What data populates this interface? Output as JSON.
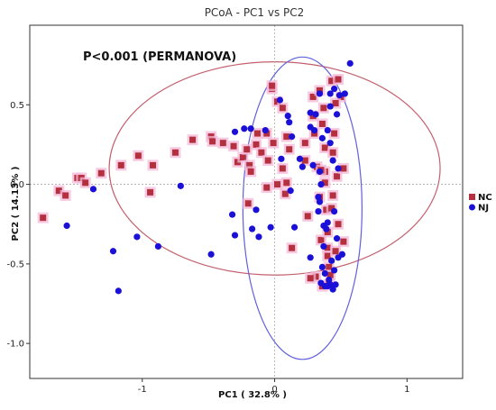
{
  "chart_data": {
    "type": "scatter",
    "title": "PCoA - PC1 vs PC2",
    "xlabel": "PC1 ( 32.8% )",
    "ylabel": "PC2 ( 14.13% )",
    "xlim": [
      -1.85,
      1.42
    ],
    "ylim": [
      -1.22,
      1.0
    ],
    "xticks": [
      -1,
      0,
      1
    ],
    "xtick_labels": [
      "-1",
      "0",
      "1"
    ],
    "yticks": [
      0.5,
      0.0,
      -0.5,
      -1.0
    ],
    "ytick_labels": [
      "0.5",
      "0.0",
      "-0.5",
      "-1.0"
    ],
    "grid": false,
    "reference_lines": [
      0,
      0
    ],
    "annotation": "P<0.001 (PERMANOVA)",
    "legend_position": "right",
    "series": [
      {
        "name": "NC",
        "marker": "square",
        "color": "#b5303f",
        "halo": "#f4b8d8",
        "points": [
          [
            -1.75,
            -0.21
          ],
          [
            -1.63,
            -0.04
          ],
          [
            -1.58,
            -0.07
          ],
          [
            -1.49,
            0.04
          ],
          [
            -1.46,
            0.04
          ],
          [
            -1.43,
            0.01
          ],
          [
            -1.31,
            0.07
          ],
          [
            -1.16,
            0.12
          ],
          [
            -1.03,
            0.18
          ],
          [
            -0.94,
            -0.05
          ],
          [
            -0.92,
            0.12
          ],
          [
            -0.75,
            0.2
          ],
          [
            -0.62,
            0.28
          ],
          [
            -0.48,
            0.3
          ],
          [
            -0.47,
            0.27
          ],
          [
            -0.39,
            0.26
          ],
          [
            -0.31,
            0.24
          ],
          [
            -0.28,
            0.14
          ],
          [
            -0.24,
            0.17
          ],
          [
            -0.21,
            0.22
          ],
          [
            -0.19,
            0.12
          ],
          [
            -0.2,
            -0.12
          ],
          [
            -0.18,
            0.08
          ],
          [
            -0.14,
            0.25
          ],
          [
            -0.13,
            0.32
          ],
          [
            -0.1,
            0.2
          ],
          [
            -0.06,
            0.32
          ],
          [
            -0.05,
            0.15
          ],
          [
            -0.06,
            -0.02
          ],
          [
            -0.02,
            0.6
          ],
          [
            -0.02,
            0.62
          ],
          [
            -0.01,
            0.26
          ],
          [
            0.02,
            0.52
          ],
          [
            0.02,
            0.0
          ],
          [
            0.06,
            0.48
          ],
          [
            0.09,
            0.3
          ],
          [
            0.11,
            0.22
          ],
          [
            0.06,
            0.1
          ],
          [
            0.09,
            0.01
          ],
          [
            0.08,
            -0.06
          ],
          [
            0.13,
            -0.4
          ],
          [
            0.23,
            0.26
          ],
          [
            0.23,
            0.15
          ],
          [
            0.29,
            0.55
          ],
          [
            0.29,
            0.43
          ],
          [
            0.3,
            0.32
          ],
          [
            0.32,
            0.11
          ],
          [
            0.25,
            -0.2
          ],
          [
            0.36,
            0.38
          ],
          [
            0.37,
            0.48
          ],
          [
            0.38,
            0.23
          ],
          [
            0.38,
            0.08
          ],
          [
            0.38,
            0.01
          ],
          [
            0.35,
            -0.35
          ],
          [
            0.39,
            -0.16
          ],
          [
            0.4,
            -0.4
          ],
          [
            0.4,
            -0.45
          ],
          [
            0.41,
            -0.52
          ],
          [
            0.42,
            -0.57
          ],
          [
            0.43,
            0.65
          ],
          [
            0.45,
            0.32
          ],
          [
            0.44,
            0.2
          ],
          [
            0.44,
            -0.07
          ],
          [
            0.46,
            -0.42
          ],
          [
            0.48,
            0.66
          ],
          [
            0.48,
            -0.25
          ],
          [
            0.5,
            0.55
          ],
          [
            0.31,
            -0.58
          ],
          [
            0.36,
            -0.64
          ],
          [
            0.41,
            -0.63
          ],
          [
            0.47,
            0.05
          ],
          [
            0.52,
            -0.36
          ],
          [
            0.52,
            0.1
          ],
          [
            0.34,
            -0.08
          ],
          [
            0.35,
            0.09
          ],
          [
            0.43,
            -0.15
          ],
          [
            0.4,
            -0.3
          ],
          [
            0.46,
            0.51
          ],
          [
            0.34,
            0.59
          ],
          [
            0.27,
            -0.59
          ]
        ]
      },
      {
        "name": "NJ",
        "marker": "circle",
        "color": "#1a10d8",
        "points": [
          [
            -1.57,
            -0.26
          ],
          [
            -1.37,
            -0.03
          ],
          [
            -1.22,
            -0.42
          ],
          [
            -1.18,
            -0.67
          ],
          [
            -1.04,
            -0.33
          ],
          [
            -0.88,
            -0.39
          ],
          [
            -0.71,
            -0.01
          ],
          [
            -0.48,
            -0.44
          ],
          [
            -0.32,
            -0.19
          ],
          [
            -0.3,
            0.33
          ],
          [
            -0.3,
            -0.32
          ],
          [
            -0.23,
            0.35
          ],
          [
            -0.18,
            0.35
          ],
          [
            -0.17,
            -0.28
          ],
          [
            -0.14,
            -0.16
          ],
          [
            -0.12,
            -0.33
          ],
          [
            -0.07,
            0.34
          ],
          [
            -0.03,
            -0.27
          ],
          [
            0.04,
            0.53
          ],
          [
            0.05,
            0.16
          ],
          [
            0.1,
            0.43
          ],
          [
            0.11,
            0.39
          ],
          [
            0.12,
            -0.04
          ],
          [
            0.13,
            0.3
          ],
          [
            0.15,
            -0.27
          ],
          [
            0.19,
            0.16
          ],
          [
            0.21,
            0.11
          ],
          [
            0.27,
            0.45
          ],
          [
            0.27,
            0.36
          ],
          [
            0.27,
            -0.46
          ],
          [
            0.29,
            0.12
          ],
          [
            0.3,
            0.34
          ],
          [
            0.31,
            0.44
          ],
          [
            0.33,
            -0.08
          ],
          [
            0.33,
            -0.17
          ],
          [
            0.34,
            0.57
          ],
          [
            0.34,
            0.08
          ],
          [
            0.34,
            -0.11
          ],
          [
            0.35,
            0.0
          ],
          [
            0.36,
            -0.52
          ],
          [
            0.37,
            -0.26
          ],
          [
            0.37,
            -0.39
          ],
          [
            0.38,
            -0.56
          ],
          [
            0.4,
            0.34
          ],
          [
            0.4,
            -0.24
          ],
          [
            0.4,
            -0.64
          ],
          [
            0.41,
            -0.6
          ],
          [
            0.42,
            0.57
          ],
          [
            0.42,
            0.49
          ],
          [
            0.42,
            0.26
          ],
          [
            0.43,
            -0.48
          ],
          [
            0.44,
            0.15
          ],
          [
            0.44,
            -0.66
          ],
          [
            0.45,
            0.6
          ],
          [
            0.45,
            -0.17
          ],
          [
            0.45,
            -0.54
          ],
          [
            0.46,
            -0.63
          ],
          [
            0.47,
            0.44
          ],
          [
            0.47,
            -0.34
          ],
          [
            0.48,
            0.1
          ],
          [
            0.48,
            -0.46
          ],
          [
            0.49,
            0.56
          ],
          [
            0.51,
            -0.44
          ],
          [
            0.53,
            0.57
          ],
          [
            0.57,
            0.76
          ],
          [
            0.35,
            -0.62
          ],
          [
            0.38,
            -0.64
          ],
          [
            0.42,
            -0.63
          ],
          [
            0.39,
            -0.28
          ],
          [
            0.36,
            0.29
          ]
        ]
      }
    ],
    "ellipses": [
      {
        "series": "NC",
        "cx": 0.0,
        "cy": 0.1,
        "rx": 1.25,
        "ry": 0.67,
        "color": "#c4606e"
      },
      {
        "series": "NJ",
        "cx": 0.21,
        "cy": -0.15,
        "rx": 0.45,
        "ry": 0.95,
        "color": "#6060dd"
      }
    ]
  }
}
